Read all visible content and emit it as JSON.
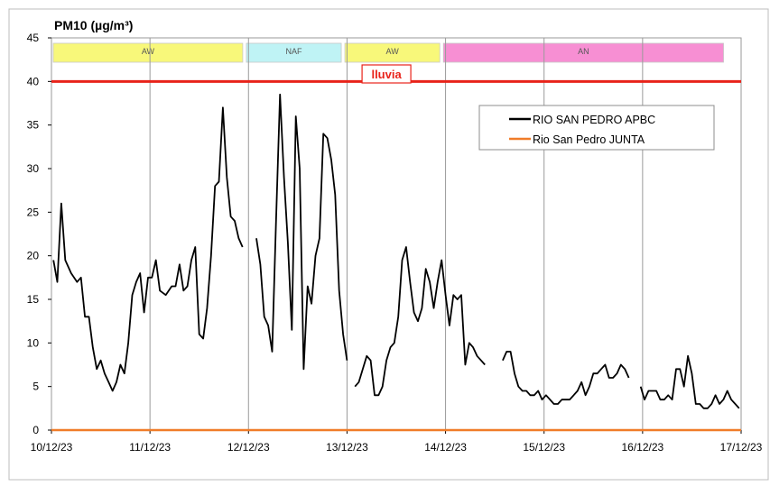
{
  "chart_data": {
    "type": "line",
    "title": "PM10 (µg/m³)",
    "xlabel": "",
    "ylabel": "",
    "ylim": [
      0,
      45
    ],
    "yticks": [
      0,
      5,
      10,
      15,
      20,
      25,
      30,
      35,
      40,
      45
    ],
    "xlim": [
      "10/12/23 00:00",
      "17/12/23 00:00"
    ],
    "xticks": [
      "10/12/23",
      "11/12/23",
      "12/12/23",
      "13/12/23",
      "14/12/23",
      "15/12/23",
      "16/12/23",
      "17/12/23"
    ],
    "grid": "vertical",
    "legend_position": "top-right",
    "limit_line": {
      "value": 40,
      "color": "#e8231a"
    },
    "annotation": {
      "text": "lluvia",
      "color": "#e8231a"
    },
    "bands": [
      {
        "label": "AW",
        "start": 0.0,
        "end": 1.96,
        "color": "#f8f87a"
      },
      {
        "label": "NAF",
        "start": 1.96,
        "end": 2.96,
        "color": "#bff3f5"
      },
      {
        "label": "AW",
        "start": 2.96,
        "end": 3.96,
        "color": "#f8f87a"
      },
      {
        "label": "AN",
        "start": 3.96,
        "end": 6.84,
        "color": "#f78fd3"
      }
    ],
    "series": [
      {
        "name": "RIO SAN PEDRO APBC",
        "color": "#000000",
        "segments": [
          [
            [
              0.02,
              19.5
            ],
            [
              0.06,
              17
            ],
            [
              0.1,
              26
            ],
            [
              0.14,
              19.5
            ],
            [
              0.2,
              18
            ],
            [
              0.26,
              17
            ],
            [
              0.3,
              17.5
            ],
            [
              0.34,
              13
            ],
            [
              0.38,
              13
            ],
            [
              0.42,
              9.5
            ],
            [
              0.46,
              7
            ],
            [
              0.5,
              8
            ],
            [
              0.54,
              6.5
            ],
            [
              0.58,
              5.5
            ],
            [
              0.62,
              4.5
            ],
            [
              0.66,
              5.5
            ],
            [
              0.7,
              7.5
            ],
            [
              0.74,
              6.5
            ],
            [
              0.78,
              10
            ],
            [
              0.82,
              15.5
            ],
            [
              0.86,
              17
            ],
            [
              0.9,
              18
            ],
            [
              0.94,
              13.5
            ],
            [
              0.98,
              17.5
            ],
            [
              1.02,
              17.5
            ],
            [
              1.06,
              19.5
            ],
            [
              1.1,
              16
            ],
            [
              1.16,
              15.5
            ],
            [
              1.22,
              16.5
            ],
            [
              1.26,
              16.5
            ],
            [
              1.3,
              19
            ],
            [
              1.34,
              16
            ],
            [
              1.38,
              16.5
            ],
            [
              1.42,
              19.5
            ],
            [
              1.46,
              21
            ],
            [
              1.5,
              11
            ],
            [
              1.54,
              10.5
            ],
            [
              1.58,
              14
            ],
            [
              1.62,
              20
            ],
            [
              1.66,
              28
            ],
            [
              1.7,
              28.5
            ],
            [
              1.74,
              37
            ],
            [
              1.78,
              29
            ],
            [
              1.82,
              24.5
            ],
            [
              1.86,
              24
            ],
            [
              1.9,
              22
            ],
            [
              1.94,
              21
            ]
          ],
          [
            [
              2.08,
              22
            ],
            [
              2.12,
              19
            ],
            [
              2.16,
              13
            ],
            [
              2.2,
              12
            ],
            [
              2.24,
              9
            ],
            [
              2.28,
              24
            ],
            [
              2.32,
              38.5
            ],
            [
              2.36,
              29
            ],
            [
              2.4,
              21.5
            ],
            [
              2.44,
              11.5
            ],
            [
              2.48,
              36
            ],
            [
              2.52,
              30
            ],
            [
              2.56,
              7
            ],
            [
              2.6,
              16.5
            ],
            [
              2.64,
              14.5
            ],
            [
              2.68,
              20
            ],
            [
              2.72,
              22
            ],
            [
              2.76,
              34
            ],
            [
              2.8,
              33.5
            ],
            [
              2.84,
              31
            ],
            [
              2.88,
              27
            ],
            [
              2.92,
              16
            ],
            [
              2.96,
              11
            ],
            [
              3.0,
              8
            ]
          ],
          [
            [
              3.08,
              5
            ],
            [
              3.12,
              5.5
            ],
            [
              3.16,
              7
            ],
            [
              3.2,
              8.5
            ],
            [
              3.24,
              8
            ],
            [
              3.28,
              4
            ],
            [
              3.32,
              4
            ],
            [
              3.36,
              5
            ],
            [
              3.4,
              8
            ],
            [
              3.44,
              9.5
            ],
            [
              3.48,
              10
            ],
            [
              3.52,
              13
            ],
            [
              3.56,
              19.5
            ],
            [
              3.6,
              21
            ],
            [
              3.64,
              17
            ],
            [
              3.68,
              13.5
            ],
            [
              3.72,
              12.5
            ],
            [
              3.76,
              14
            ],
            [
              3.8,
              18.5
            ],
            [
              3.84,
              17
            ],
            [
              3.88,
              14
            ],
            [
              3.92,
              17
            ],
            [
              3.96,
              19.5
            ],
            [
              4.0,
              15.5
            ],
            [
              4.04,
              12
            ],
            [
              4.08,
              15.5
            ],
            [
              4.12,
              15
            ],
            [
              4.16,
              15.5
            ],
            [
              4.2,
              7.5
            ],
            [
              4.24,
              10
            ],
            [
              4.28,
              9.5
            ],
            [
              4.32,
              8.5
            ],
            [
              4.36,
              8
            ],
            [
              4.4,
              7.5
            ]
          ],
          [
            [
              4.58,
              8
            ],
            [
              4.62,
              9
            ],
            [
              4.66,
              9
            ],
            [
              4.7,
              6.5
            ],
            [
              4.74,
              5
            ],
            [
              4.78,
              4.5
            ],
            [
              4.82,
              4.5
            ],
            [
              4.86,
              4
            ],
            [
              4.9,
              4
            ],
            [
              4.94,
              4.5
            ],
            [
              4.98,
              3.5
            ],
            [
              5.02,
              4
            ],
            [
              5.06,
              3.5
            ],
            [
              5.1,
              3
            ],
            [
              5.14,
              3
            ],
            [
              5.18,
              3.5
            ],
            [
              5.22,
              3.5
            ],
            [
              5.26,
              3.5
            ],
            [
              5.3,
              4
            ],
            [
              5.34,
              4.5
            ],
            [
              5.38,
              5.5
            ],
            [
              5.42,
              4
            ],
            [
              5.46,
              5
            ],
            [
              5.5,
              6.5
            ],
            [
              5.54,
              6.5
            ],
            [
              5.58,
              7
            ],
            [
              5.62,
              7.5
            ],
            [
              5.66,
              6
            ],
            [
              5.7,
              6
            ],
            [
              5.74,
              6.5
            ],
            [
              5.78,
              7.5
            ],
            [
              5.82,
              7
            ],
            [
              5.86,
              6
            ]
          ],
          [
            [
              5.98,
              5
            ],
            [
              6.02,
              3.5
            ],
            [
              6.06,
              4.5
            ],
            [
              6.1,
              4.5
            ],
            [
              6.14,
              4.5
            ],
            [
              6.18,
              3.5
            ],
            [
              6.22,
              3.5
            ],
            [
              6.26,
              4
            ],
            [
              6.3,
              3.5
            ],
            [
              6.34,
              7
            ],
            [
              6.38,
              7
            ],
            [
              6.42,
              5
            ],
            [
              6.46,
              8.5
            ],
            [
              6.5,
              6.5
            ],
            [
              6.54,
              3
            ],
            [
              6.58,
              3
            ],
            [
              6.62,
              2.5
            ],
            [
              6.66,
              2.5
            ],
            [
              6.7,
              3
            ],
            [
              6.74,
              4
            ],
            [
              6.78,
              3
            ],
            [
              6.82,
              3.5
            ],
            [
              6.86,
              4.5
            ],
            [
              6.9,
              3.5
            ],
            [
              6.94,
              3
            ],
            [
              6.98,
              2.5
            ]
          ]
        ]
      },
      {
        "name": "Rio San Pedro JUNTA",
        "color": "#f07c29",
        "segments": [
          [
            [
              0.0,
              0
            ],
            [
              7.0,
              0
            ]
          ]
        ]
      }
    ]
  }
}
